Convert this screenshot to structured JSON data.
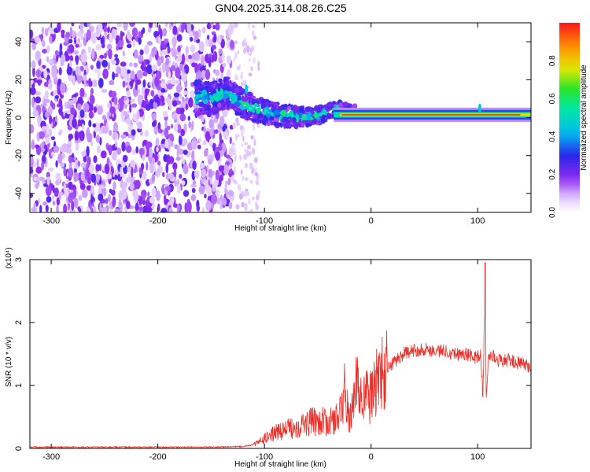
{
  "title": "GN04.2025.314.08.26.C25",
  "colors": {
    "snr_line": "#e8302a",
    "spectrogram_low": "#8a1cf0",
    "spectrogram_mid": "#00e0c0",
    "spectrogram_high": "#ff1020"
  },
  "chart_data": [
    {
      "type": "heatmap",
      "xlabel": "Height of straight line (km)",
      "ylabel": "Frequency (Hz)",
      "xlim": [
        -320,
        150
      ],
      "ylim": [
        -50,
        50
      ],
      "x_ticks": [
        -300,
        -200,
        -100,
        0,
        100
      ],
      "y_ticks": [
        -40,
        -20,
        0,
        20,
        40
      ],
      "colorbar": {
        "label": "Normalized spectral amplitude",
        "range": [
          0,
          1
        ],
        "ticks": [
          0.0,
          0.2,
          0.4,
          0.6,
          0.8
        ],
        "tick_labels": [
          "0.0",
          "0.2",
          "0.4",
          "0.6",
          "0.8"
        ]
      },
      "features": {
        "noise_region_x": [
          -320,
          -130
        ],
        "tone_band_x": [
          -35,
          150
        ],
        "tone_frequency_hz": 1.5,
        "tone_band_halfwidth_hz": 2.5,
        "transition_track": [
          {
            "x": -165,
            "y": 11
          },
          {
            "x": -150,
            "y": 10
          },
          {
            "x": -135,
            "y": 13
          },
          {
            "x": -120,
            "y": 7
          },
          {
            "x": -100,
            "y": 3
          },
          {
            "x": -80,
            "y": 1
          },
          {
            "x": -60,
            "y": 0
          },
          {
            "x": -45,
            "y": 2
          },
          {
            "x": -30,
            "y": 5
          },
          {
            "x": -15,
            "y": 3
          }
        ],
        "spikes": [
          {
            "x": 102,
            "y": 5
          },
          {
            "x": -117,
            "y": 15
          }
        ]
      }
    },
    {
      "type": "line",
      "xlabel": "Height of straight line (km)",
      "ylabel": "SNR (10 * v/v)",
      "y_multiplier": "(x10⁴)",
      "xlim": [
        -320,
        150
      ],
      "ylim": [
        0,
        3
      ],
      "x_ticks": [
        -300,
        -200,
        -100,
        0,
        100
      ],
      "y_ticks": [
        0,
        1,
        2,
        3
      ],
      "series": [
        {
          "x": [
            -320,
            -250,
            -200,
            -150,
            -120,
            -110,
            -100,
            -90,
            -80,
            -70,
            -60,
            -50,
            -40,
            -30,
            -25,
            -20,
            -15,
            -10,
            -5,
            0,
            5,
            10,
            15,
            20,
            30,
            40,
            50,
            60,
            70,
            80,
            90,
            95,
            100,
            103,
            105,
            107,
            108,
            110,
            112,
            115,
            120,
            130,
            140,
            150
          ],
          "y": [
            0.02,
            0.02,
            0.02,
            0.02,
            0.03,
            0.06,
            0.15,
            0.25,
            0.3,
            0.35,
            0.4,
            0.45,
            0.4,
            0.5,
            0.9,
            0.4,
            1.0,
            0.9,
            0.85,
            0.8,
            1.1,
            1.15,
            1.25,
            1.35,
            1.5,
            1.55,
            1.58,
            1.55,
            1.55,
            1.5,
            1.5,
            1.45,
            1.45,
            1.5,
            0.75,
            2.9,
            0.7,
            1.45,
            1.5,
            1.45,
            1.4,
            1.4,
            1.35,
            1.3
          ]
        }
      ]
    }
  ]
}
